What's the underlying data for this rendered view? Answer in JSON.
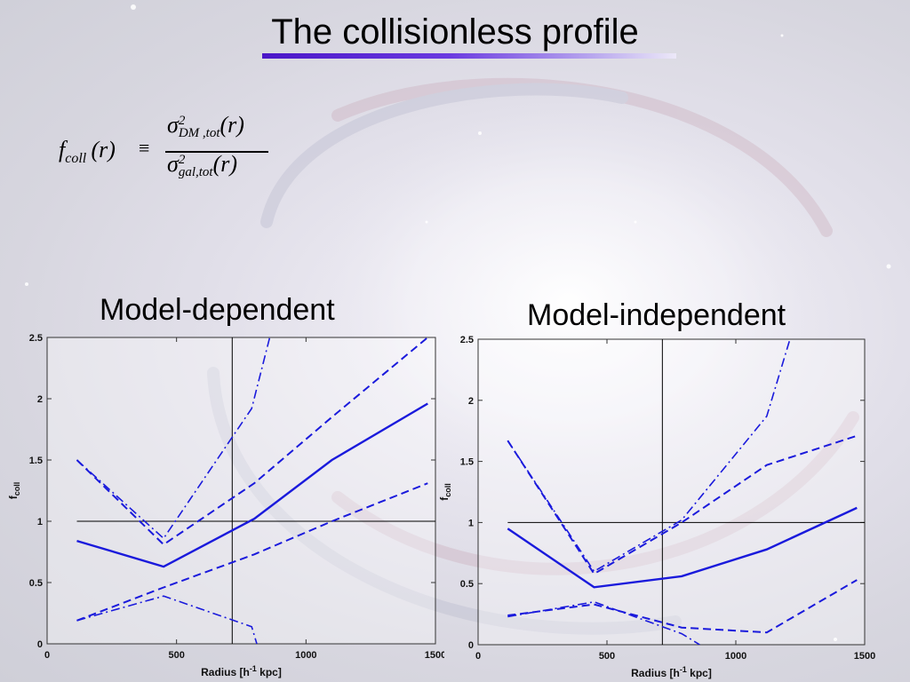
{
  "slide": {
    "title": "The collisionless profile",
    "formula": {
      "lhs_symbol": "f",
      "lhs_sub": "coll",
      "lhs_arg": "(r)",
      "equiv": "≡",
      "num_symbol": "σ",
      "num_sup": "2",
      "num_sub": "DM ,tot",
      "num_arg": "(r)",
      "den_symbol": "σ",
      "den_sup": "2",
      "den_sub": "gal,tot",
      "den_arg": "(r)"
    },
    "left_label": "Model-dependent",
    "right_label": "Model-independent"
  },
  "colors": {
    "curve": "#1a1adc",
    "reference": "#000000"
  },
  "chart_data": [
    {
      "type": "line",
      "title": "Model-dependent",
      "xlabel": "Radius [h^-1 kpc]",
      "ylabel": "f_coll",
      "xlim": [
        0,
        1500
      ],
      "ylim": [
        0,
        2.5
      ],
      "xticks": [
        0,
        500,
        1000,
        1500
      ],
      "yticks": [
        0,
        0.5,
        1,
        1.5,
        2,
        2.5
      ],
      "hline": 1,
      "vline": 715,
      "series": [
        {
          "style": "solid",
          "x": [
            115,
            450,
            800,
            1100,
            1470
          ],
          "y": [
            0.84,
            0.63,
            1.02,
            1.5,
            1.96
          ]
        },
        {
          "style": "dashed",
          "x": [
            115,
            450,
            800,
            1100,
            1470
          ],
          "y": [
            1.5,
            0.81,
            1.31,
            1.85,
            2.5
          ]
        },
        {
          "style": "dashed",
          "x": [
            115,
            450,
            800,
            1100,
            1470
          ],
          "y": [
            0.19,
            0.46,
            0.73,
            1.0,
            1.31
          ]
        },
        {
          "style": "dashdot",
          "x": [
            115,
            450,
            790,
            860
          ],
          "y": [
            1.5,
            0.86,
            1.92,
            2.5
          ]
        },
        {
          "style": "dashdot",
          "x": [
            115,
            450,
            790,
            810
          ],
          "y": [
            0.19,
            0.39,
            0.14,
            0.0
          ]
        }
      ]
    },
    {
      "type": "line",
      "title": "Model-independent",
      "xlabel": "Radius [h^-1 kpc]",
      "ylabel": "f_coll",
      "xlim": [
        0,
        1500
      ],
      "ylim": [
        0,
        2.5
      ],
      "xticks": [
        0,
        500,
        1000,
        1500
      ],
      "yticks": [
        0,
        0.5,
        1,
        1.5,
        2,
        2.5
      ],
      "hline": 1,
      "vline": 715,
      "series": [
        {
          "style": "solid",
          "x": [
            115,
            450,
            790,
            1120,
            1470
          ],
          "y": [
            0.95,
            0.47,
            0.56,
            0.78,
            1.12
          ]
        },
        {
          "style": "dashed",
          "x": [
            115,
            450,
            790,
            1120,
            1470
          ],
          "y": [
            1.67,
            0.58,
            1.0,
            1.47,
            1.71
          ]
        },
        {
          "style": "dashed",
          "x": [
            115,
            450,
            790,
            1120,
            1470
          ],
          "y": [
            0.24,
            0.33,
            0.14,
            0.1,
            0.53
          ]
        },
        {
          "style": "dashdot",
          "x": [
            115,
            450,
            790,
            1120,
            1210
          ],
          "y": [
            1.67,
            0.6,
            1.02,
            1.87,
            2.5
          ]
        },
        {
          "style": "dashdot",
          "x": [
            115,
            450,
            790,
            860
          ],
          "y": [
            0.23,
            0.35,
            0.09,
            0.0
          ]
        }
      ]
    }
  ]
}
